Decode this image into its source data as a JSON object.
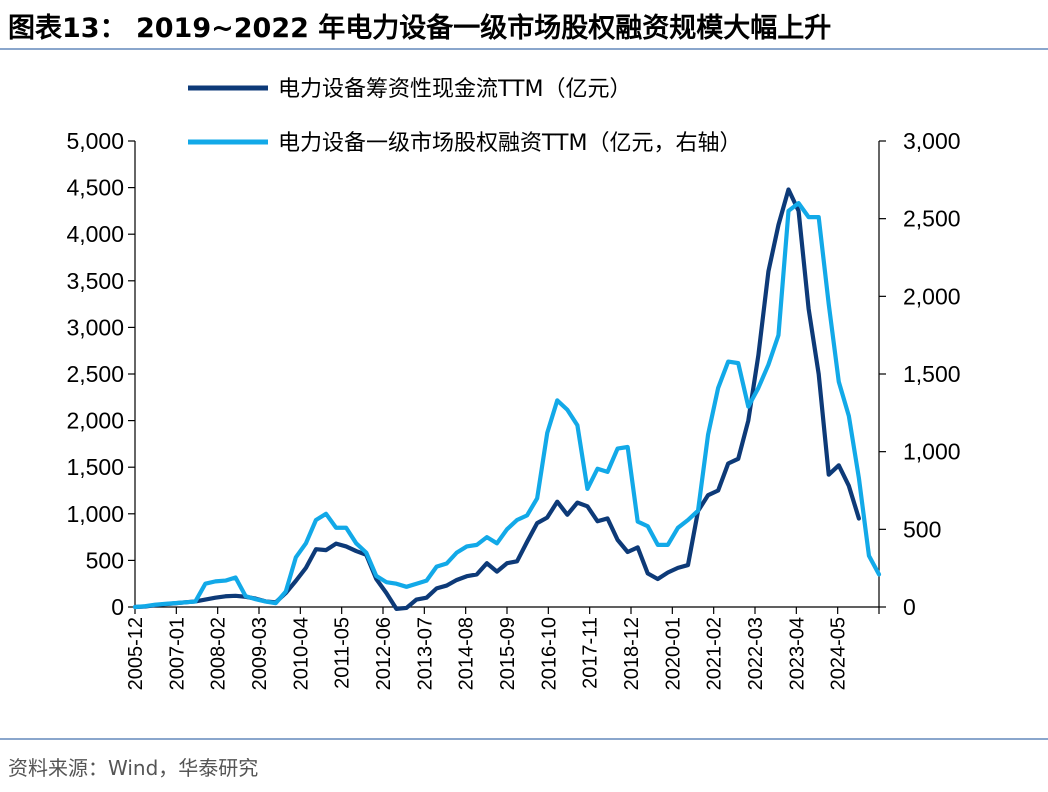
{
  "figure": {
    "title": "图表13： 2019~2022 年电力设备一级市场股权融资规模大幅上升",
    "source": "资料来源：Wind，华泰研究"
  },
  "colors": {
    "series_dark": "#0d3a78",
    "series_light": "#12a9e8",
    "rule": "#8aa6cc"
  },
  "chart_data": {
    "type": "line",
    "title": "",
    "legend_position": "top",
    "x_tick_labels": [
      "2005-12",
      "2007-01",
      "2008-02",
      "2009-03",
      "2010-04",
      "2011-05",
      "2012-06",
      "2013-07",
      "2014-08",
      "2015-09",
      "2016-10",
      "2017-11",
      "2018-12",
      "2020-01",
      "2021-02",
      "2022-03",
      "2023-04",
      "2024-05"
    ],
    "x_range_index": [
      0,
      74
    ],
    "y_left": {
      "range": [
        0,
        5000
      ],
      "ticks": [
        0,
        500,
        1000,
        1500,
        2000,
        2500,
        3000,
        3500,
        4000,
        4500,
        5000
      ],
      "tick_labels": [
        "0",
        "500",
        "1,000",
        "1,500",
        "2,000",
        "2,500",
        "3,000",
        "3,500",
        "4,000",
        "4,500",
        "5,000"
      ]
    },
    "y_right": {
      "range": [
        0,
        3000
      ],
      "ticks": [
        0,
        500,
        1000,
        1500,
        2000,
        2500,
        3000
      ],
      "tick_labels": [
        "0",
        "500",
        "1,000",
        "1,500",
        "2,000",
        "2,500",
        "3,000"
      ]
    },
    "series": [
      {
        "name": "电力设备筹资性现金流TTM（亿元）",
        "axis": "left",
        "start_index": 0,
        "values": [
          0,
          5,
          20,
          30,
          40,
          50,
          60,
          80,
          100,
          115,
          120,
          110,
          90,
          60,
          50,
          150,
          280,
          420,
          620,
          610,
          680,
          650,
          600,
          560,
          300,
          150,
          -20,
          -10,
          80,
          100,
          200,
          230,
          290,
          330,
          350,
          470,
          380,
          470,
          490,
          700,
          900,
          960,
          1130,
          990,
          1120,
          1080,
          920,
          950,
          720,
          590,
          640,
          360,
          300,
          370,
          420,
          450,
          1030,
          1200,
          1250,
          1540,
          1590,
          2000,
          2700,
          3600,
          4100,
          4480,
          4250,
          3200,
          2500,
          1420,
          1520,
          1300,
          950
        ]
      },
      {
        "name": "电力设备一级市场股权融资TTM（亿元，右轴）",
        "axis": "right",
        "start_index": 0,
        "values": [
          0,
          5,
          15,
          20,
          25,
          30,
          35,
          150,
          165,
          170,
          190,
          70,
          50,
          35,
          25,
          100,
          320,
          410,
          560,
          600,
          510,
          510,
          410,
          350,
          200,
          160,
          150,
          130,
          150,
          170,
          260,
          280,
          350,
          390,
          400,
          450,
          410,
          500,
          560,
          590,
          700,
          1120,
          1330,
          1270,
          1170,
          760,
          890,
          870,
          1020,
          1030,
          550,
          520,
          400,
          400,
          510,
          560,
          620,
          1110,
          1410,
          1580,
          1570,
          1290,
          1410,
          1560,
          1750,
          2550,
          2600,
          2510,
          2510,
          1950,
          1450,
          1230,
          830,
          330,
          210
        ]
      }
    ]
  }
}
